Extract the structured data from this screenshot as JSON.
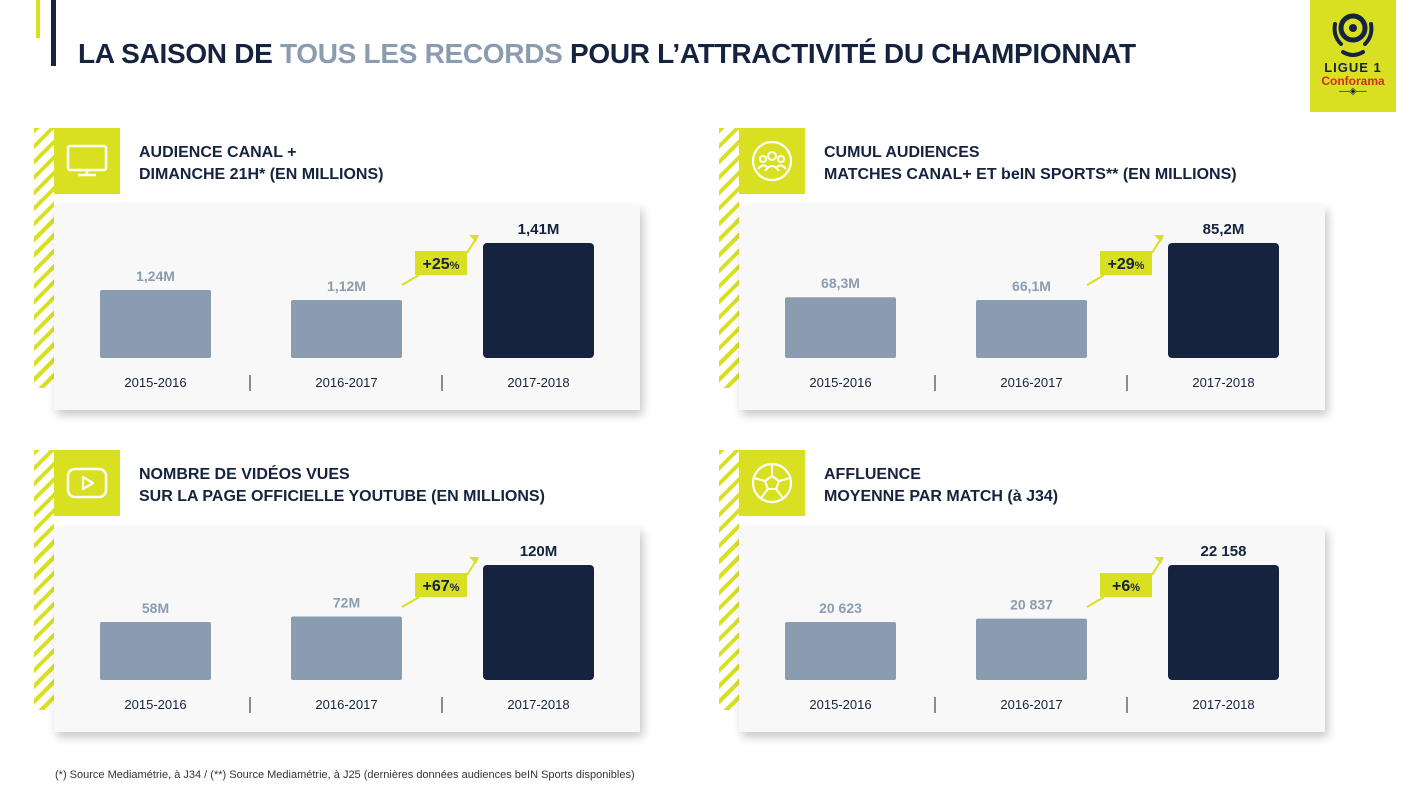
{
  "header": {
    "title_part1": "LA SAISON DE ",
    "title_highlight": "TOUS LES RECORDS",
    "title_part2": " POUR L’ATTRACTIVITÉ DU CHAMPIONNAT"
  },
  "logo": {
    "line1": "LIGUE 1",
    "line2": "Conforama"
  },
  "colors": {
    "accent": "#d9e021",
    "navy": "#15233f",
    "grey_bar": "#8a9db0",
    "highlight_text": "#8a9db0"
  },
  "panels": [
    {
      "icon": "tv-icon",
      "title_line1": "AUDIENCE CANAL +",
      "title_line2": "DIMANCHE 21H* (EN MILLIONS)",
      "growth": "+25",
      "growth_unit": "%"
    },
    {
      "icon": "audience-icon",
      "title_line1": "CUMUL AUDIENCES",
      "title_line2": "MATCHES CANAL+ ET beIN SPORTS** (EN MILLIONS)",
      "growth": "+29",
      "growth_unit": "%"
    },
    {
      "icon": "youtube-play-icon",
      "title_line1": "NOMBRE DE VIDÉOS VUES",
      "title_line2": "SUR LA PAGE OFFICIELLE YOUTUBE (EN MILLIONS)",
      "growth": "+67",
      "growth_unit": "%"
    },
    {
      "icon": "football-icon",
      "title_line1": "AFFLUENCE",
      "title_line2": "MOYENNE PAR MATCH (à J34)",
      "growth": "+6",
      "growth_unit": "%"
    }
  ],
  "chart_data": [
    {
      "type": "bar",
      "title": "AUDIENCE CANAL + DIMANCHE 21H* (EN MILLIONS)",
      "categories": [
        "2015-2016",
        "2016-2017",
        "2017-2018"
      ],
      "values": [
        1.24,
        1.12,
        1.41
      ],
      "labels": [
        "1,24M",
        "1,12M",
        "1,41M"
      ],
      "highlight_index": 2,
      "ylim": [
        0,
        1.6
      ]
    },
    {
      "type": "bar",
      "title": "CUMUL AUDIENCES MATCHES CANAL+ ET beIN SPORTS** (EN MILLIONS)",
      "categories": [
        "2015-2016",
        "2016-2017",
        "2017-2018"
      ],
      "values": [
        68.3,
        66.1,
        85.2
      ],
      "labels": [
        "68,3M",
        "66,1M",
        "85,2M"
      ],
      "highlight_index": 2,
      "ylim": [
        0,
        100
      ]
    },
    {
      "type": "bar",
      "title": "NOMBRE DE VIDÉOS VUES SUR LA PAGE OFFICIELLE YOUTUBE (EN MILLIONS)",
      "categories": [
        "2015-2016",
        "2016-2017",
        "2017-2018"
      ],
      "values": [
        58,
        72,
        120
      ],
      "labels": [
        "58M",
        "72M",
        "120M"
      ],
      "highlight_index": 2,
      "ylim": [
        0,
        130
      ]
    },
    {
      "type": "bar",
      "title": "AFFLUENCE MOYENNE PAR MATCH (à J34)",
      "categories": [
        "2015-2016",
        "2016-2017",
        "2017-2018"
      ],
      "values": [
        20623,
        20837,
        22158
      ],
      "labels": [
        "20 623",
        "20 837",
        "22 158"
      ],
      "highlight_index": 2,
      "ylim": [
        0,
        25000
      ]
    }
  ],
  "footnote": "(*) Source Mediamétrie, à J34 / (**) Source Mediamétrie, à J25 (dernières données audiences beIN Sports disponibles)"
}
